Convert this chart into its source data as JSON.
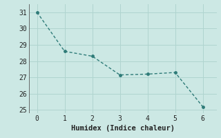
{
  "x": [
    0,
    1,
    2,
    3,
    4,
    5,
    6
  ],
  "y": [
    31.0,
    28.6,
    28.3,
    27.15,
    27.2,
    27.3,
    25.2
  ],
  "xlabel": "Humidex (Indice chaleur)",
  "line_color": "#2e7b78",
  "bg_color": "#cce8e4",
  "grid_color": "#b0d4cf",
  "ylim": [
    24.8,
    31.5
  ],
  "xlim": [
    -0.3,
    6.5
  ],
  "yticks": [
    25,
    26,
    27,
    28,
    29,
    30,
    31
  ],
  "xticks": [
    0,
    1,
    2,
    3,
    4,
    5,
    6
  ],
  "marker": "o",
  "markersize": 2.5,
  "linewidth": 1.0,
  "xlabel_fontsize": 7.5,
  "tick_fontsize": 7
}
